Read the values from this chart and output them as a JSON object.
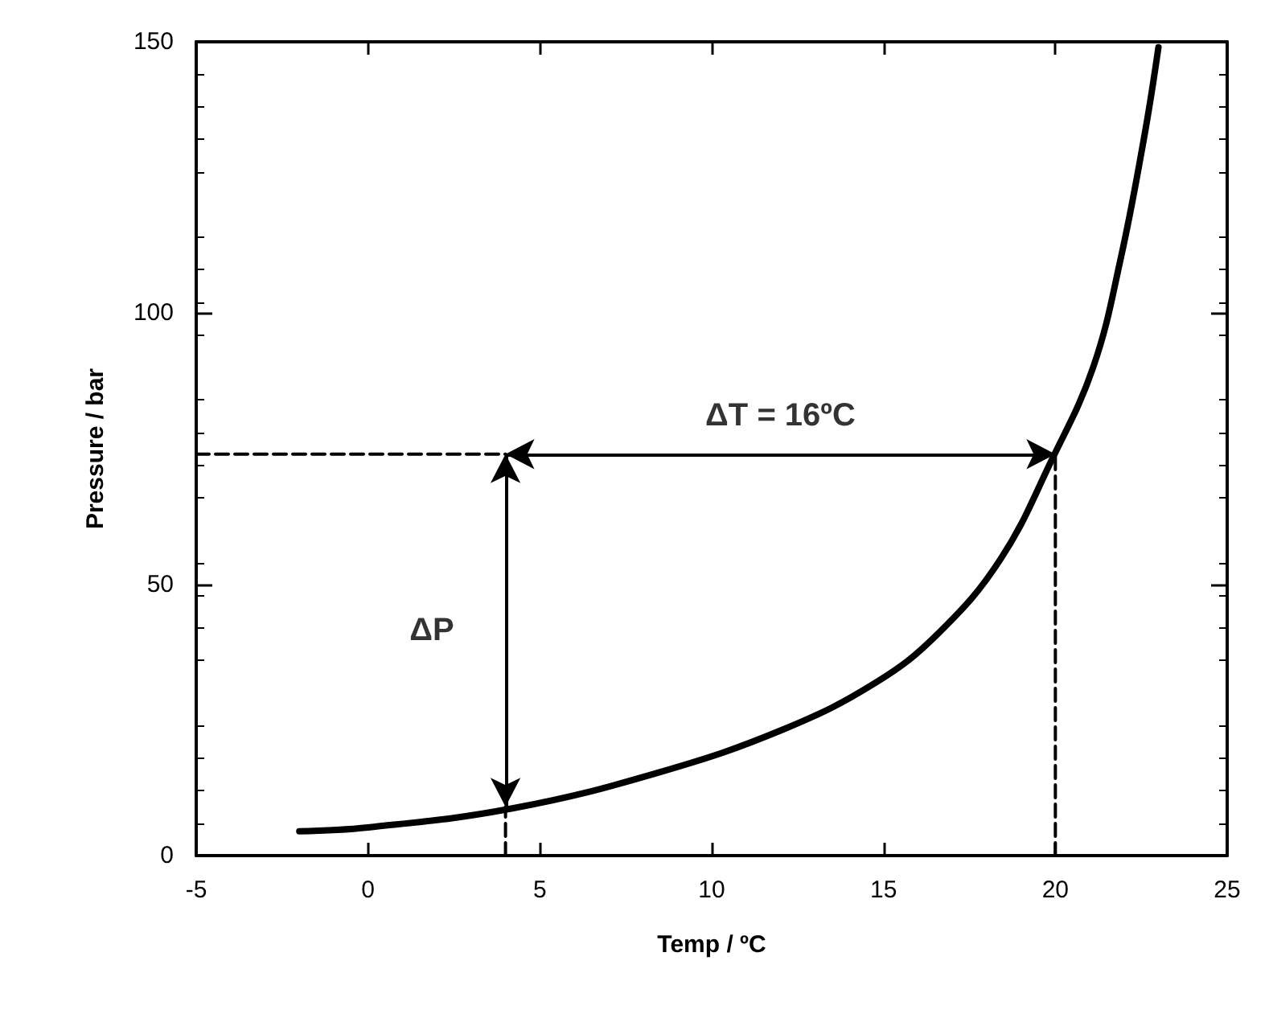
{
  "chart_data": {
    "type": "line",
    "xlabel": "Temp / ºC",
    "ylabel": "Pressure / bar",
    "xlim": [
      -5,
      25
    ],
    "xticks": [
      -5,
      0,
      5,
      10,
      15,
      20,
      25
    ],
    "ylim": [
      0,
      150
    ],
    "yticks": [
      0,
      50,
      100,
      150
    ],
    "grid": false,
    "marker": "none",
    "series": [
      {
        "color": "#000000",
        "x": [
          -2,
          0,
          4.2,
          8.5,
          12.1,
          14.8,
          16.6,
          18.4,
          19.9,
          21.1,
          21.9,
          22.6,
          23.0
        ],
        "values": [
          4.5,
          5.2,
          8.7,
          15.4,
          23.3,
          32,
          41,
          54.6,
          73,
          90,
          110,
          133,
          149
        ],
        "line_style": "solid"
      },
      {
        "color": "#000000",
        "x": [
          -5,
          4
        ],
        "values": [
          74,
          74
        ],
        "line_style": "dashed"
      },
      {
        "color": "#000000",
        "x": [
          20,
          20
        ],
        "values": [
          0,
          74
        ],
        "line_style": "dashed"
      },
      {
        "color": "#000000",
        "x": [
          4,
          4
        ],
        "values": [
          0,
          9
        ],
        "line_style": "dashed"
      }
    ],
    "annotations": [
      "ΔT = 16ºC",
      "ΔP"
    ]
  }
}
